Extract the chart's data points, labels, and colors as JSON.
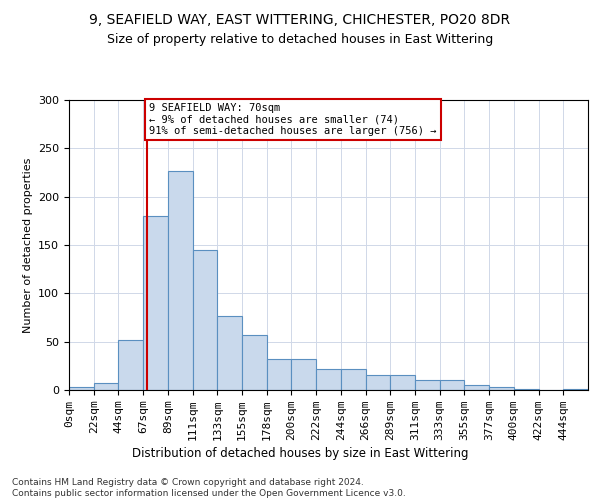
{
  "title1": "9, SEAFIELD WAY, EAST WITTERING, CHICHESTER, PO20 8DR",
  "title2": "Size of property relative to detached houses in East Wittering",
  "xlabel": "Distribution of detached houses by size in East Wittering",
  "ylabel": "Number of detached properties",
  "footer": "Contains HM Land Registry data © Crown copyright and database right 2024.\nContains public sector information licensed under the Open Government Licence v3.0.",
  "bin_labels": [
    "0sqm",
    "22sqm",
    "44sqm",
    "67sqm",
    "89sqm",
    "111sqm",
    "133sqm",
    "155sqm",
    "178sqm",
    "200sqm",
    "222sqm",
    "244sqm",
    "266sqm",
    "289sqm",
    "311sqm",
    "333sqm",
    "355sqm",
    "377sqm",
    "400sqm",
    "422sqm",
    "444sqm"
  ],
  "bar_values": [
    3,
    7,
    52,
    180,
    227,
    145,
    77,
    57,
    32,
    32,
    22,
    22,
    16,
    16,
    10,
    10,
    5,
    3,
    1,
    0,
    1
  ],
  "bar_color": "#c9d9ec",
  "bar_edge_color": "#5a8fc0",
  "vline_color": "#cc0000",
  "ylim": [
    0,
    300
  ],
  "bin_width": 22.2,
  "annotation_text": "9 SEAFIELD WAY: 70sqm\n← 9% of detached houses are smaller (74)\n91% of semi-detached houses are larger (756) →",
  "annotation_box_color": "#ffffff",
  "annotation_box_edge": "#cc0000",
  "property_sqm": 70,
  "yticks": [
    0,
    50,
    100,
    150,
    200,
    250,
    300
  ],
  "title1_fontsize": 10,
  "title2_fontsize": 9,
  "ylabel_fontsize": 8,
  "xlabel_fontsize": 8.5,
  "tick_fontsize": 8,
  "footer_fontsize": 6.5
}
